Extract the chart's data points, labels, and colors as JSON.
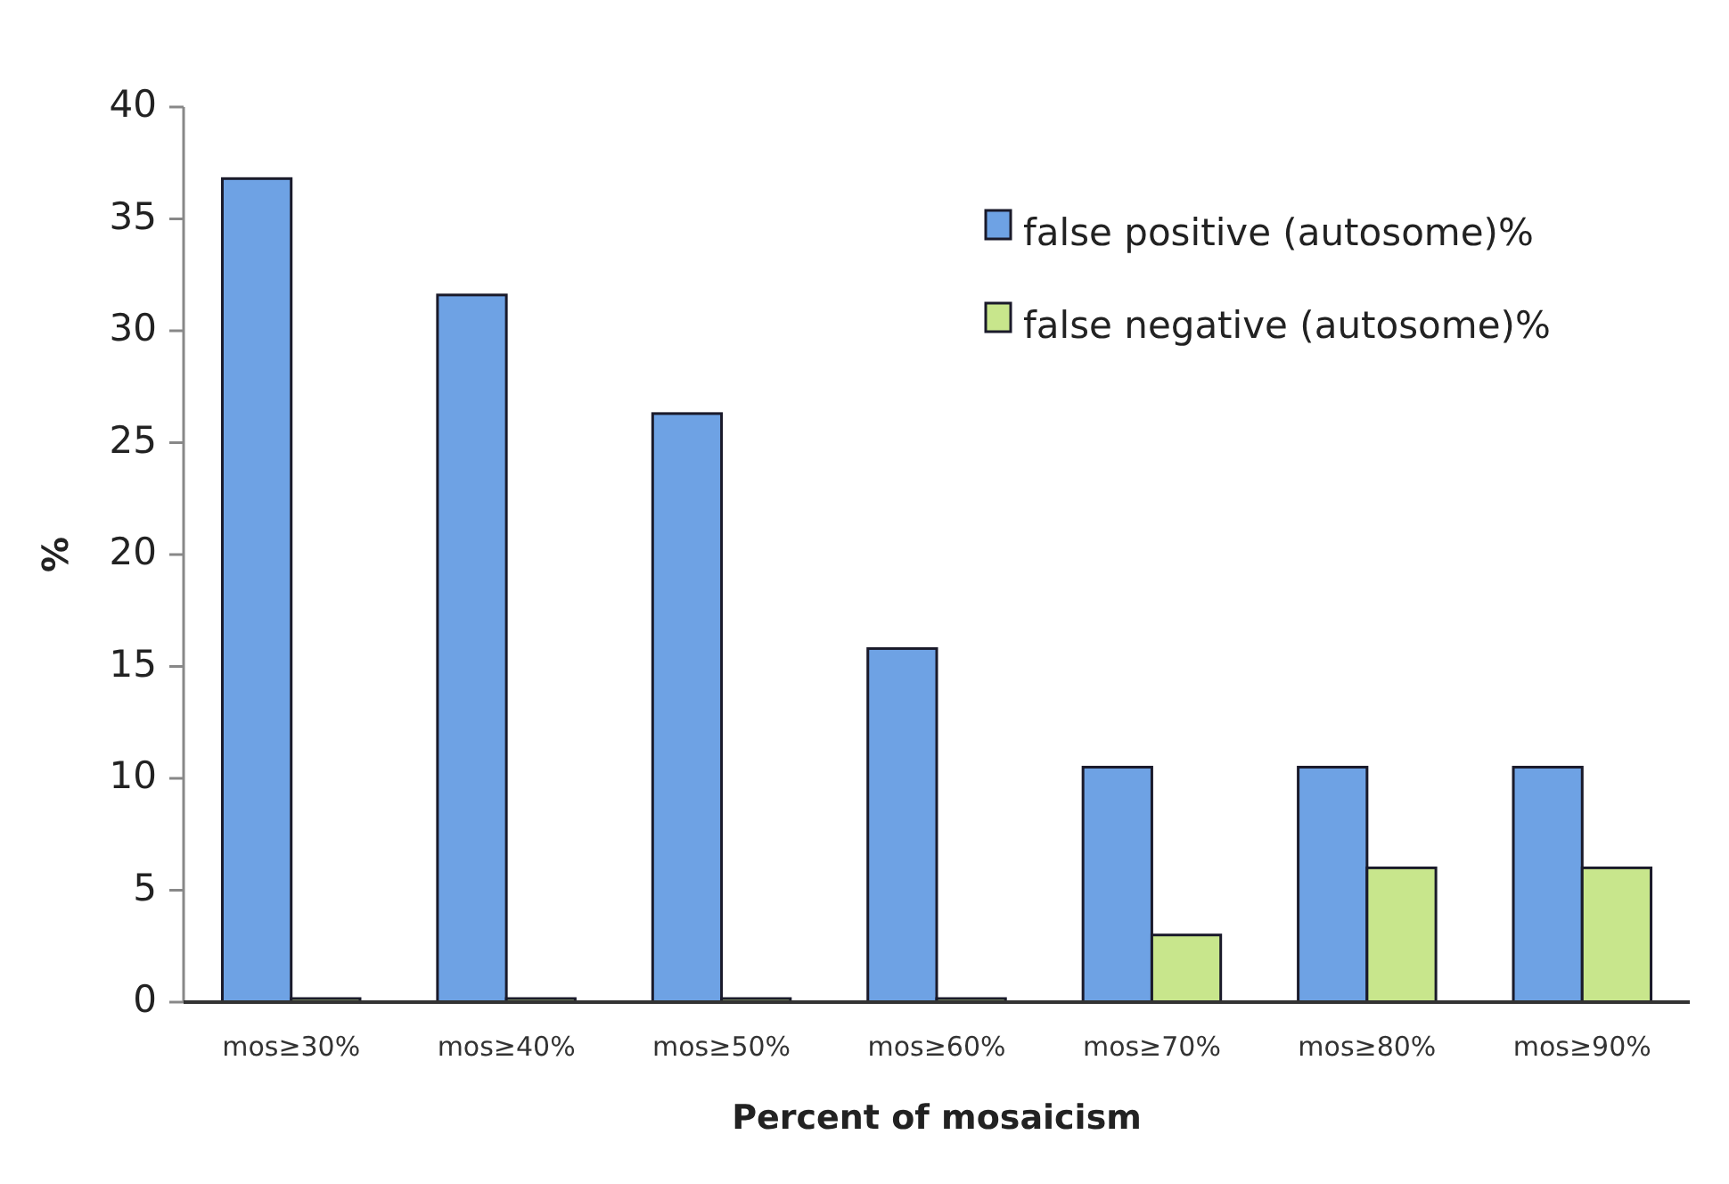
{
  "chart_data": {
    "type": "bar",
    "xlabel": "Percent of mosaicism",
    "ylabel": "%",
    "categories": [
      "mos≥30%",
      "mos≥40%",
      "mos≥50%",
      "mos≥60%",
      "mos≥70%",
      "mos≥80%",
      "mos≥90%"
    ],
    "series": [
      {
        "name": "false positive (autosome)%",
        "color": "#6ea2e4",
        "values": [
          36.8,
          31.6,
          26.3,
          15.8,
          10.5,
          10.5,
          10.5
        ]
      },
      {
        "name": "false negative (autosome)%",
        "color": "#c8e68c",
        "values": [
          0,
          0,
          0,
          0,
          3,
          6,
          6
        ]
      }
    ],
    "ylim": [
      0,
      40
    ],
    "yticks": [
      0,
      5,
      10,
      15,
      20,
      25,
      30,
      35,
      40
    ],
    "legend": "top right",
    "grid": false
  }
}
